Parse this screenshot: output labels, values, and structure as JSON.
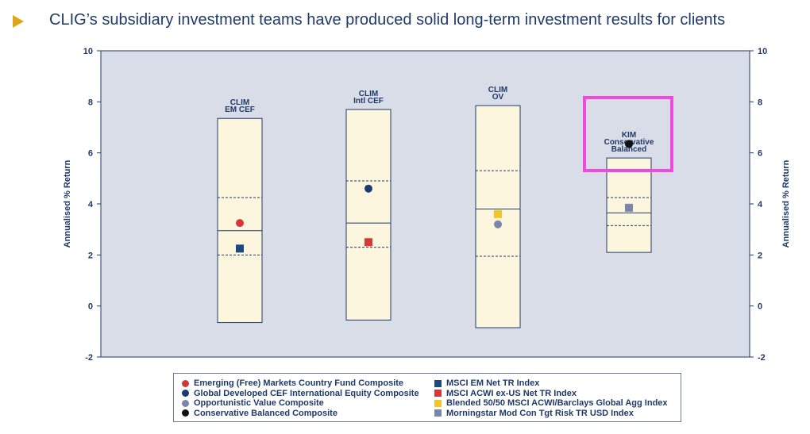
{
  "headline": "CLIG’s subsidiary investment teams have produced solid long-term investment results for clients",
  "colors": {
    "accent_arrow": "#e0a619",
    "navy": "#1f3a68",
    "plot_background": "#d9dde8",
    "box_fill": "#fdf6de",
    "highlight": "#ee4bde"
  },
  "chart_data": {
    "type": "box",
    "ylabel_left": "Annualised % Return",
    "ylabel_right": "Annualised % Return",
    "ylim": [
      -2,
      10
    ],
    "yticks": [
      -2,
      0,
      2,
      4,
      6,
      8,
      10
    ],
    "boxes": [
      {
        "label_lines": [
          "CLIM",
          "EM CEF"
        ],
        "min": -0.65,
        "q1": 2.0,
        "median": 2.95,
        "q3": 4.25,
        "max": 7.35,
        "points": [
          {
            "series": "Emerging (Free) Markets Country Fund Composite",
            "value": 3.25
          },
          {
            "series": "MSCI EM Net TR Index",
            "value": 2.25
          }
        ]
      },
      {
        "label_lines": [
          "CLIM",
          "Intl CEF"
        ],
        "min": -0.55,
        "q1": 2.3,
        "median": 3.25,
        "q3": 4.9,
        "max": 7.7,
        "points": [
          {
            "series": "Global Developed CEF International Equity Composite",
            "value": 4.6
          },
          {
            "series": "MSCI ACWI ex-US Net TR Index",
            "value": 2.5
          }
        ]
      },
      {
        "label_lines": [
          "CLIM",
          "OV"
        ],
        "min": -0.85,
        "q1": 1.95,
        "median": 3.8,
        "q3": 5.3,
        "max": 7.85,
        "points": [
          {
            "series": "Opportunistic Value Composite",
            "value": 3.2
          },
          {
            "series": "Blended 50/50 MSCI ACWI/Barclays Global Agg Index",
            "value": 3.6
          }
        ]
      },
      {
        "label_lines": [
          "KIM",
          "Conservative",
          "Balanced"
        ],
        "min": 2.1,
        "q1": 3.15,
        "median": 3.65,
        "q3": 4.25,
        "max": 5.8,
        "highlighted": true,
        "points": [
          {
            "series": "Conservative Balanced Composite",
            "value": 6.35
          },
          {
            "series": "Morningstar Mod Con Tgt Risk TR USD Index",
            "value": 3.85
          }
        ]
      }
    ],
    "legend": [
      {
        "name": "Emerging (Free) Markets Country Fund Composite",
        "shape": "circle",
        "color": "#d6383a"
      },
      {
        "name": "Global Developed CEF International Equity Composite",
        "shape": "circle",
        "color": "#1a3c6e"
      },
      {
        "name": "Opportunistic Value Composite",
        "shape": "circle",
        "color": "#7b86aa"
      },
      {
        "name": "Conservative Balanced Composite",
        "shape": "circle",
        "color": "#111111"
      },
      {
        "name": "MSCI EM Net TR Index",
        "shape": "square",
        "color": "#1a4a80"
      },
      {
        "name": "MSCI ACWI ex-US Net TR Index",
        "shape": "square",
        "color": "#d6383a"
      },
      {
        "name": "Blended 50/50 MSCI ACWI/Barclays Global Agg Index",
        "shape": "square",
        "color": "#f3c52a"
      },
      {
        "name": "Morningstar Mod Con Tgt Risk TR USD Index",
        "shape": "square",
        "color": "#7b86aa"
      }
    ]
  }
}
